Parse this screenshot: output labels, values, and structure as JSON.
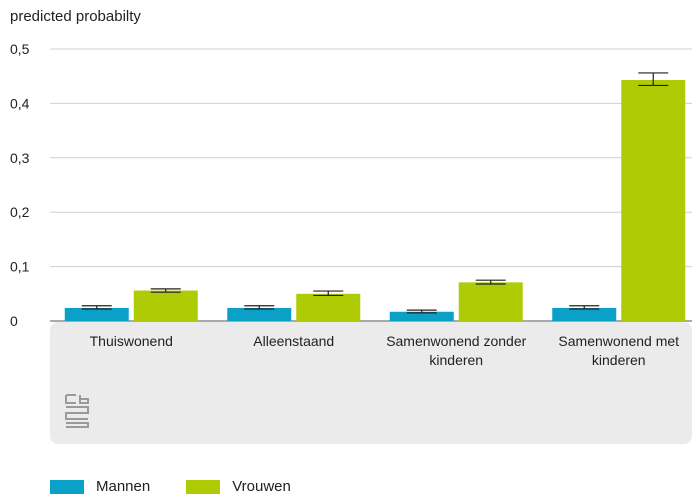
{
  "chart_data": {
    "type": "bar",
    "ylabel": "predicted probabilty",
    "xlabel": "",
    "ylim": [
      0,
      0.5
    ],
    "yticks": [
      {
        "value": 0,
        "label": "0"
      },
      {
        "value": 0.1,
        "label": "0,1"
      },
      {
        "value": 0.2,
        "label": "0,2"
      },
      {
        "value": 0.3,
        "label": "0,3"
      },
      {
        "value": 0.4,
        "label": "0,4"
      },
      {
        "value": 0.5,
        "label": "0,5"
      }
    ],
    "grid": true,
    "legend_position": "bottom-left",
    "categories": [
      [
        "Thuiswonend"
      ],
      [
        "Alleenstaand"
      ],
      [
        "Samenwonend zonder",
        "kinderen"
      ],
      [
        "Samenwonend met",
        "kinderen"
      ]
    ],
    "series": [
      {
        "name": "Mannen",
        "color": "#0aa0c8",
        "values": [
          0.024,
          0.024,
          0.017,
          0.024
        ],
        "error": [
          [
            0.022,
            0.028
          ],
          [
            0.022,
            0.028
          ],
          [
            0.015,
            0.02
          ],
          [
            0.022,
            0.028
          ]
        ]
      },
      {
        "name": "Vrouwen",
        "color": "#afcb05",
        "values": [
          0.056,
          0.05,
          0.071,
          0.443
        ],
        "error": [
          [
            0.053,
            0.059
          ],
          [
            0.047,
            0.055
          ],
          [
            0.068,
            0.075
          ],
          [
            0.433,
            0.456
          ]
        ]
      }
    ]
  },
  "branding": {
    "logo": "cbs-logo"
  }
}
